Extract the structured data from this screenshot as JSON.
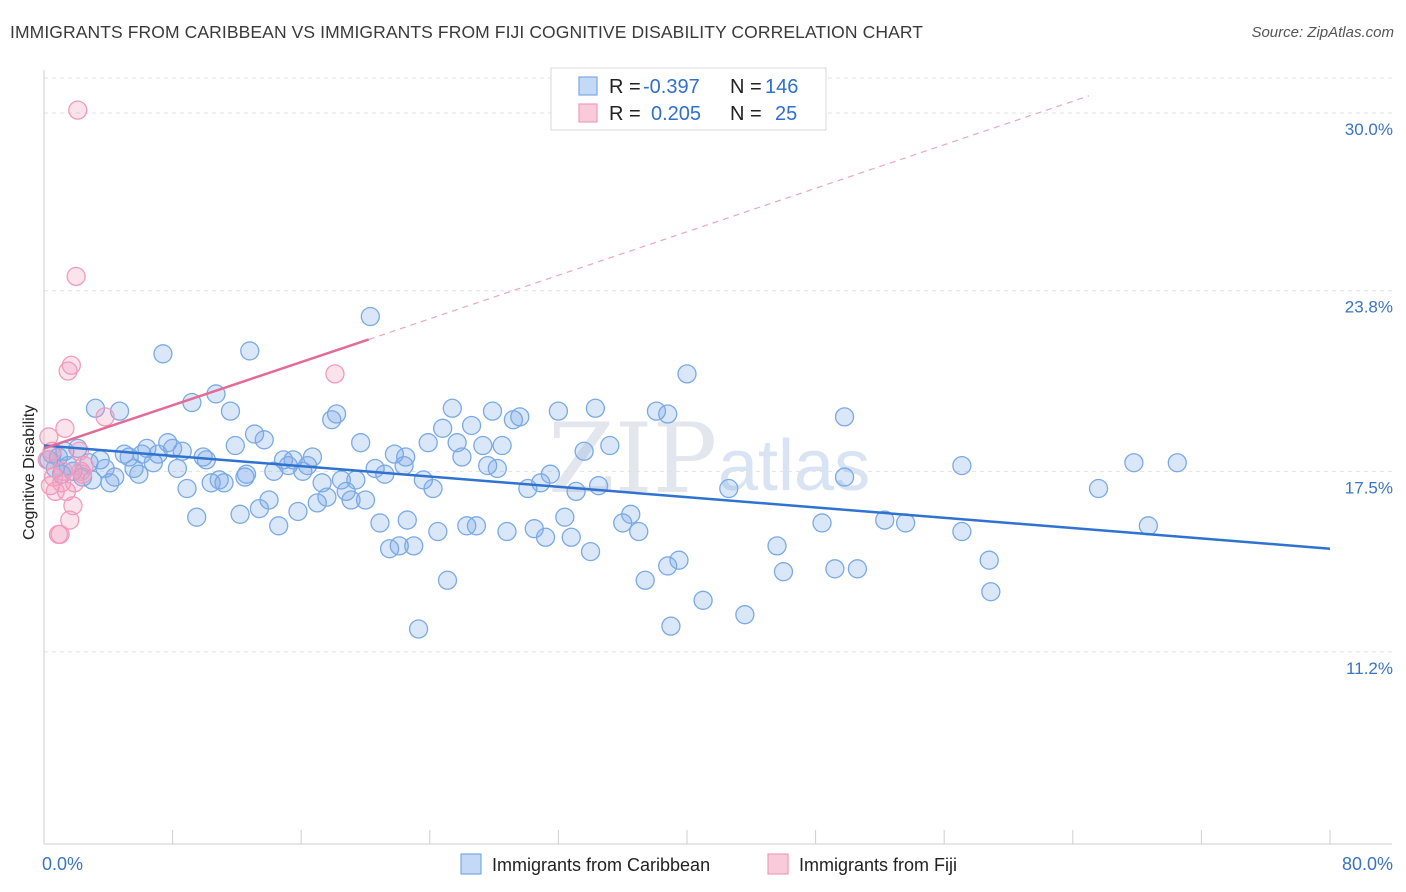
{
  "title": "IMMIGRANTS FROM CARIBBEAN VS IMMIGRANTS FROM FIJI COGNITIVE DISABILITY CORRELATION CHART",
  "source": "Source: ZipAtlas.com",
  "watermark": {
    "zip": "ZIP",
    "atlas": "atlas"
  },
  "chart_data": {
    "type": "scatter",
    "title": "IMMIGRANTS FROM CARIBBEAN VS IMMIGRANTS FROM FIJI COGNITIVE DISABILITY CORRELATION CHART",
    "ylabel": "Cognitive Disability",
    "xlim": [
      0,
      80
    ],
    "ylim": [
      4.5,
      31.5
    ],
    "y_ticks": [
      {
        "value": 30.0,
        "label": "30.0%"
      },
      {
        "value": 23.8,
        "label": "23.8%"
      },
      {
        "value": 17.5,
        "label": "17.5%"
      },
      {
        "value": 11.2,
        "label": "11.2%"
      }
    ],
    "x_tick_labels": [
      {
        "value": 0,
        "label": "0.0%"
      },
      {
        "value": 80,
        "label": "80.0%"
      }
    ],
    "grid": true,
    "legend": {
      "placement": "top-center",
      "rows": [
        {
          "r_label": "R =",
          "r_value": "-0.397",
          "n_label": "N =",
          "n_value": "146"
        },
        {
          "r_label": "R =",
          "r_value": "0.205",
          "n_label": "N =",
          "n_value": "25"
        }
      ]
    },
    "series": [
      {
        "name": "Immigrants from Caribbean",
        "color": "#7aaae6",
        "line_color": "#2f72d0",
        "trend": {
          "x0": 0,
          "y0": 18.4,
          "x1": 80,
          "y1": 14.8
        },
        "points": [
          [
            0.3,
            17.9
          ],
          [
            0.5,
            18.1
          ],
          [
            0.7,
            17.6
          ],
          [
            0.9,
            18.0
          ],
          [
            1.1,
            17.4
          ],
          [
            1.3,
            18.2
          ],
          [
            1.5,
            17.7
          ],
          [
            1.8,
            17.5
          ],
          [
            2.1,
            18.3
          ],
          [
            2.4,
            17.3
          ],
          [
            2.8,
            17.8
          ],
          [
            3.0,
            17.2
          ],
          [
            3.2,
            19.7
          ],
          [
            3.5,
            17.9
          ],
          [
            3.8,
            17.6
          ],
          [
            4.1,
            17.1
          ],
          [
            4.4,
            17.3
          ],
          [
            4.7,
            19.6
          ],
          [
            5.0,
            18.1
          ],
          [
            5.3,
            18.0
          ],
          [
            5.6,
            17.6
          ],
          [
            5.9,
            17.4
          ],
          [
            6.1,
            18.1
          ],
          [
            6.4,
            18.3
          ],
          [
            6.8,
            17.8
          ],
          [
            7.1,
            18.1
          ],
          [
            7.4,
            21.6
          ],
          [
            7.7,
            18.5
          ],
          [
            8.0,
            18.3
          ],
          [
            8.3,
            17.6
          ],
          [
            8.6,
            18.2
          ],
          [
            8.9,
            16.9
          ],
          [
            9.2,
            19.9
          ],
          [
            9.5,
            15.9
          ],
          [
            9.9,
            18.0
          ],
          [
            10.1,
            17.9
          ],
          [
            10.4,
            17.1
          ],
          [
            10.7,
            20.2
          ],
          [
            10.9,
            17.2
          ],
          [
            11.2,
            17.1
          ],
          [
            11.6,
            19.6
          ],
          [
            11.9,
            18.4
          ],
          [
            12.2,
            16.0
          ],
          [
            12.5,
            17.3
          ],
          [
            12.8,
            21.7
          ],
          [
            13.1,
            18.8
          ],
          [
            13.4,
            16.2
          ],
          [
            13.7,
            18.6
          ],
          [
            14.0,
            16.5
          ],
          [
            14.3,
            17.5
          ],
          [
            14.6,
            15.6
          ],
          [
            14.9,
            17.9
          ],
          [
            15.2,
            17.7
          ],
          [
            15.5,
            17.9
          ],
          [
            15.8,
            16.1
          ],
          [
            16.1,
            17.5
          ],
          [
            16.4,
            17.7
          ],
          [
            16.7,
            18.0
          ],
          [
            17.0,
            16.4
          ],
          [
            17.3,
            17.1
          ],
          [
            17.6,
            16.6
          ],
          [
            17.9,
            19.3
          ],
          [
            18.2,
            19.5
          ],
          [
            18.5,
            17.2
          ],
          [
            18.8,
            16.8
          ],
          [
            19.1,
            16.5
          ],
          [
            19.4,
            17.2
          ],
          [
            19.7,
            18.5
          ],
          [
            20.0,
            16.5
          ],
          [
            20.3,
            22.9
          ],
          [
            20.6,
            17.6
          ],
          [
            20.9,
            15.7
          ],
          [
            21.2,
            17.4
          ],
          [
            21.5,
            14.8
          ],
          [
            21.8,
            18.1
          ],
          [
            22.1,
            14.9
          ],
          [
            22.4,
            17.7
          ],
          [
            22.6,
            15.8
          ],
          [
            23.0,
            14.9
          ],
          [
            23.3,
            12.0
          ],
          [
            23.6,
            17.2
          ],
          [
            23.9,
            18.5
          ],
          [
            24.2,
            16.9
          ],
          [
            24.5,
            15.4
          ],
          [
            24.8,
            19.0
          ],
          [
            25.1,
            13.7
          ],
          [
            25.4,
            19.7
          ],
          [
            25.7,
            18.5
          ],
          [
            26.0,
            18.0
          ],
          [
            26.3,
            15.6
          ],
          [
            26.6,
            19.1
          ],
          [
            26.9,
            15.6
          ],
          [
            27.3,
            18.4
          ],
          [
            27.6,
            17.7
          ],
          [
            27.9,
            19.6
          ],
          [
            28.2,
            17.6
          ],
          [
            28.5,
            18.4
          ],
          [
            28.8,
            15.4
          ],
          [
            29.2,
            19.3
          ],
          [
            29.6,
            19.4
          ],
          [
            30.1,
            16.9
          ],
          [
            30.5,
            15.5
          ],
          [
            30.9,
            17.1
          ],
          [
            31.2,
            15.2
          ],
          [
            31.5,
            17.4
          ],
          [
            32.0,
            19.6
          ],
          [
            32.4,
            15.9
          ],
          [
            32.8,
            15.2
          ],
          [
            33.1,
            16.8
          ],
          [
            33.6,
            18.2
          ],
          [
            34.0,
            14.7
          ],
          [
            34.3,
            19.7
          ],
          [
            34.5,
            17.0
          ],
          [
            35.2,
            18.4
          ],
          [
            36.0,
            15.7
          ],
          [
            36.5,
            16.0
          ],
          [
            37.0,
            15.4
          ],
          [
            37.4,
            13.7
          ],
          [
            38.1,
            19.6
          ],
          [
            38.8,
            14.2
          ],
          [
            39.0,
            12.1
          ],
          [
            39.5,
            14.4
          ],
          [
            40.0,
            20.9
          ],
          [
            41.0,
            13.0
          ],
          [
            42.6,
            16.9
          ],
          [
            43.6,
            12.5
          ],
          [
            45.6,
            14.9
          ],
          [
            46.0,
            14.0
          ],
          [
            48.4,
            15.7
          ],
          [
            49.2,
            14.1
          ],
          [
            49.8,
            17.3
          ],
          [
            49.8,
            19.4
          ],
          [
            50.6,
            14.1
          ],
          [
            52.3,
            15.8
          ],
          [
            53.6,
            15.7
          ],
          [
            57.1,
            15.4
          ],
          [
            57.1,
            17.7
          ],
          [
            58.8,
            14.4
          ],
          [
            58.9,
            13.3
          ],
          [
            65.6,
            16.9
          ],
          [
            67.8,
            17.8
          ],
          [
            68.7,
            15.6
          ],
          [
            70.5,
            17.8
          ],
          [
            38.8,
            19.5
          ],
          [
            12.6,
            17.4
          ],
          [
            22.5,
            18.0
          ]
        ]
      },
      {
        "name": "Immigrants from Fiji",
        "color": "#f29bbb",
        "line_color": "#e46a97",
        "trend": {
          "x0": 0,
          "y0": 18.3,
          "x1": 20.2,
          "y1": 22.1
        },
        "trend_dashed_to": {
          "x": 65,
          "y": 30.6
        },
        "points": [
          [
            0.2,
            17.9
          ],
          [
            0.3,
            18.7
          ],
          [
            0.4,
            17.0
          ],
          [
            0.5,
            18.2
          ],
          [
            0.6,
            17.3
          ],
          [
            0.7,
            16.8
          ],
          [
            0.9,
            15.3
          ],
          [
            1.0,
            15.3
          ],
          [
            1.1,
            17.1
          ],
          [
            1.2,
            17.5
          ],
          [
            1.3,
            19.0
          ],
          [
            1.4,
            16.8
          ],
          [
            1.5,
            21.0
          ],
          [
            1.6,
            15.8
          ],
          [
            1.7,
            21.2
          ],
          [
            1.8,
            16.3
          ],
          [
            1.9,
            17.1
          ],
          [
            2.0,
            24.3
          ],
          [
            2.1,
            30.1
          ],
          [
            2.2,
            18.2
          ],
          [
            2.3,
            17.5
          ],
          [
            2.4,
            17.4
          ],
          [
            2.5,
            17.7
          ],
          [
            3.8,
            19.4
          ],
          [
            18.1,
            20.9
          ]
        ]
      }
    ]
  }
}
